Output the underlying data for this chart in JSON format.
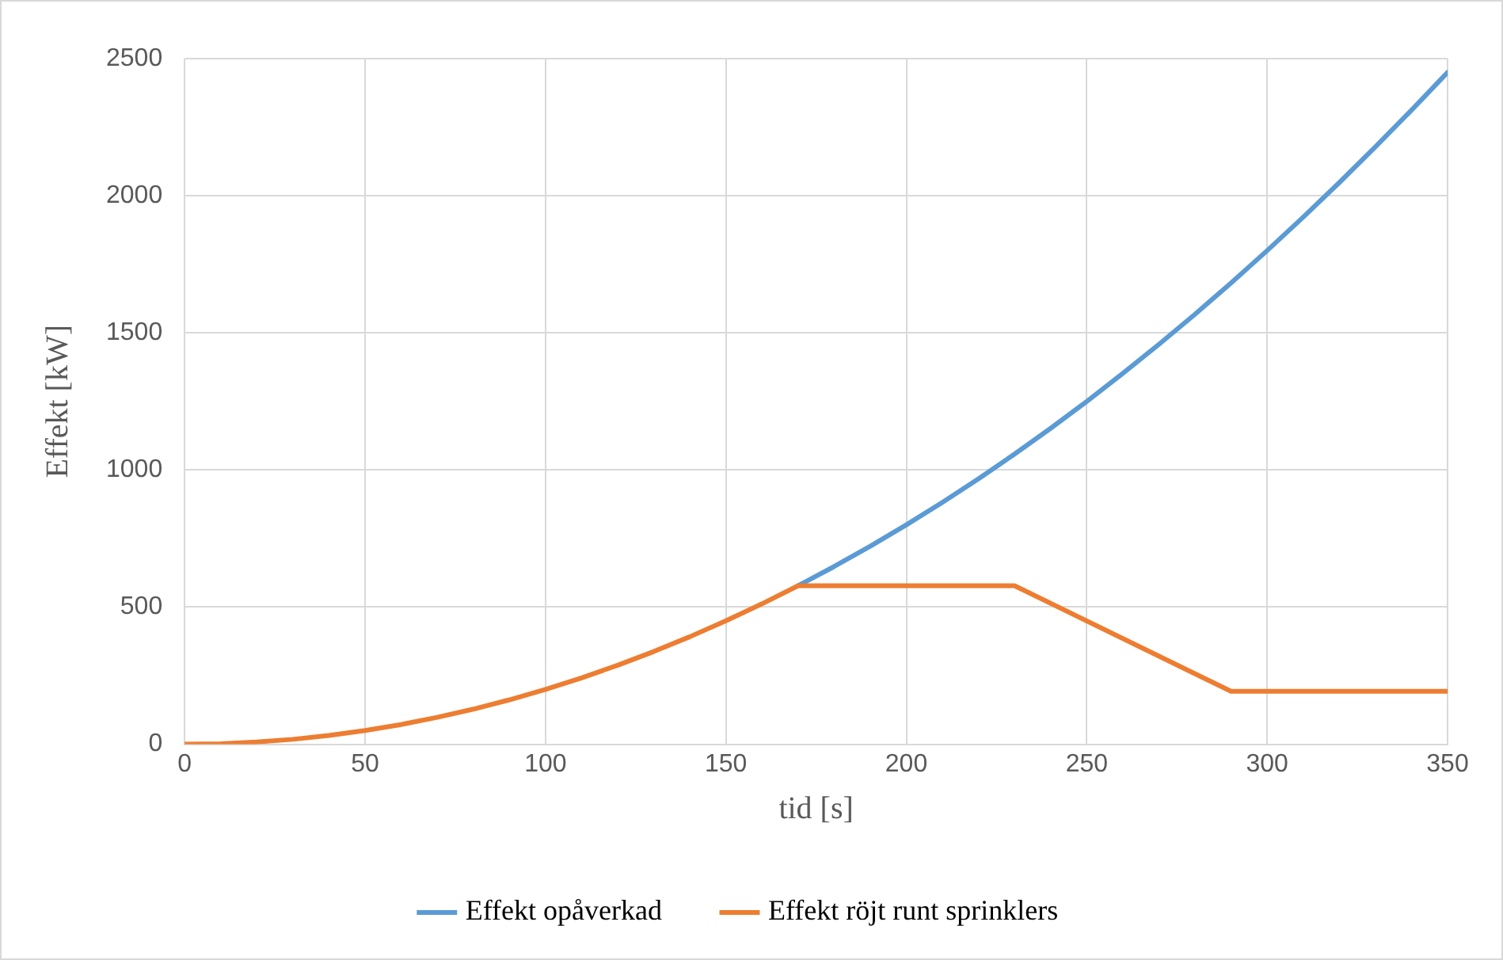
{
  "chart_data": {
    "type": "line",
    "xlabel": "tid [s]",
    "ylabel": "Effekt [kW]",
    "xlim": [
      0,
      350
    ],
    "xticks": [
      0,
      50,
      100,
      150,
      200,
      250,
      300,
      350
    ],
    "ylim": [
      0,
      2500
    ],
    "yticks": [
      0,
      500,
      1000,
      1500,
      2000,
      2500
    ],
    "grid": true,
    "legend": "bottom",
    "marker": "none",
    "line_style": "solid",
    "series": [
      {
        "name": "Effekt opåverkad",
        "color": "#5b9bd5",
        "x": [
          170,
          180,
          190,
          200,
          210,
          220,
          230,
          240,
          250,
          260,
          270,
          280,
          290,
          300,
          310,
          320,
          330,
          340,
          350
        ],
        "values": [
          578,
          648,
          722,
          800,
          882,
          968,
          1058,
          1152,
          1250,
          1352,
          1458,
          1568,
          1682,
          1800,
          1922,
          2048,
          2178,
          2312,
          2450
        ]
      },
      {
        "name": "Effekt röjt runt sprinklers",
        "color": "#ed7d31",
        "x": [
          0,
          10,
          20,
          30,
          40,
          50,
          60,
          70,
          80,
          90,
          100,
          110,
          120,
          130,
          140,
          150,
          160,
          170,
          230,
          290,
          350
        ],
        "values": [
          0,
          2,
          8,
          18,
          32,
          50,
          72,
          98,
          128,
          162,
          200,
          242,
          288,
          338,
          392,
          450,
          512,
          578,
          578,
          193,
          193
        ]
      }
    ]
  }
}
